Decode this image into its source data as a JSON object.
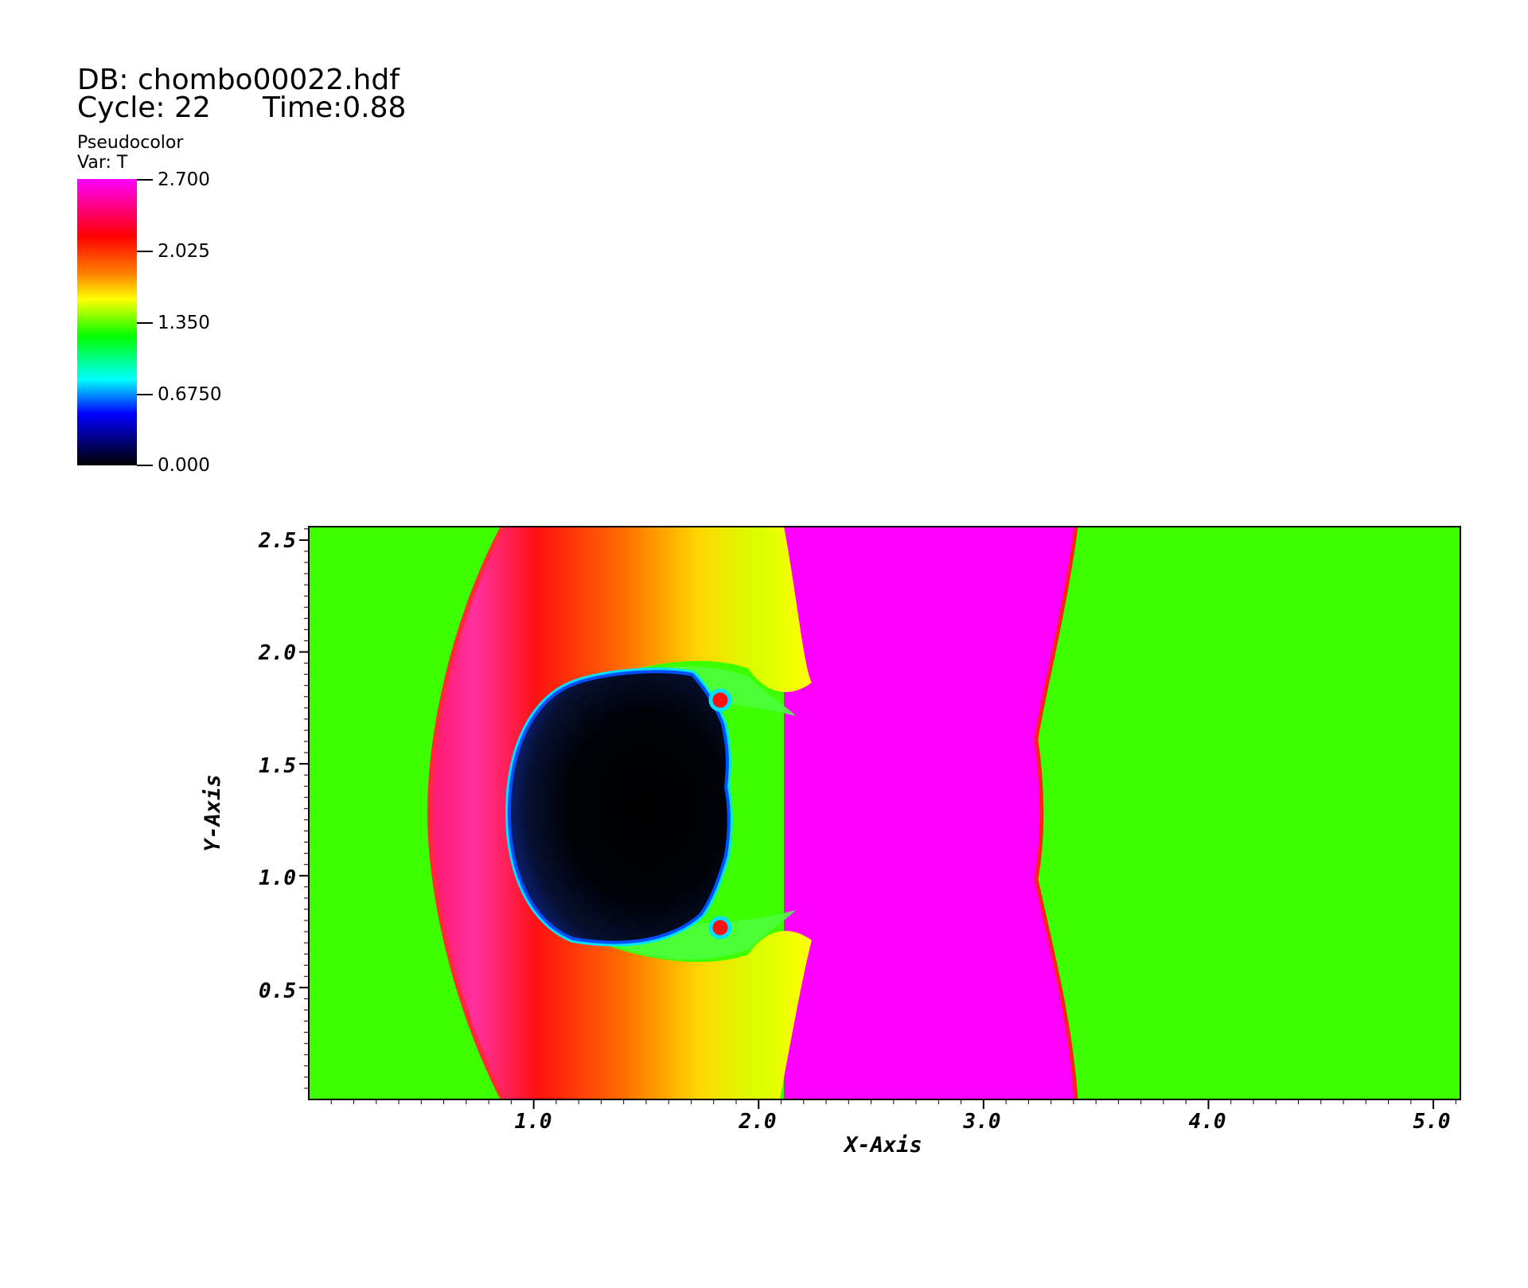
{
  "header": {
    "db_label": "DB: chombo00022.hdf",
    "cycle_label": "Cycle: 22",
    "time_label": "Time:0.88"
  },
  "legend": {
    "plot_type": "Pseudocolor",
    "variable": "Var: T",
    "ticks": [
      "2.700",
      "2.025",
      "1.350",
      "0.6750",
      "0.000"
    ],
    "colors": {
      "max": "#ff00ff",
      "high": "#ff0000",
      "mid_high": "#ffff00",
      "mid": "#00ff00",
      "mid_low": "#00ffff",
      "low": "#0000ff",
      "min": "#000000"
    }
  },
  "chart_data": {
    "type": "heatmap",
    "title": "",
    "xlabel": "X-Axis",
    "ylabel": "Y-Axis",
    "xlim": [
      0.0,
      5.12
    ],
    "ylim": [
      0.0,
      2.56
    ],
    "x_ticks": [
      "1.0",
      "2.0",
      "3.0",
      "4.0",
      "5.0"
    ],
    "y_ticks": [
      "2.5",
      "2.0",
      "1.5",
      "1.0",
      "0.5"
    ],
    "colorbar_range": [
      0.0,
      2.7
    ],
    "colorbar_ticks": [
      2.7,
      2.025,
      1.35,
      0.675,
      0.0
    ],
    "ambient_value": 1.35,
    "post_shock_value": 2.7,
    "bubble_value": 0.0
  }
}
